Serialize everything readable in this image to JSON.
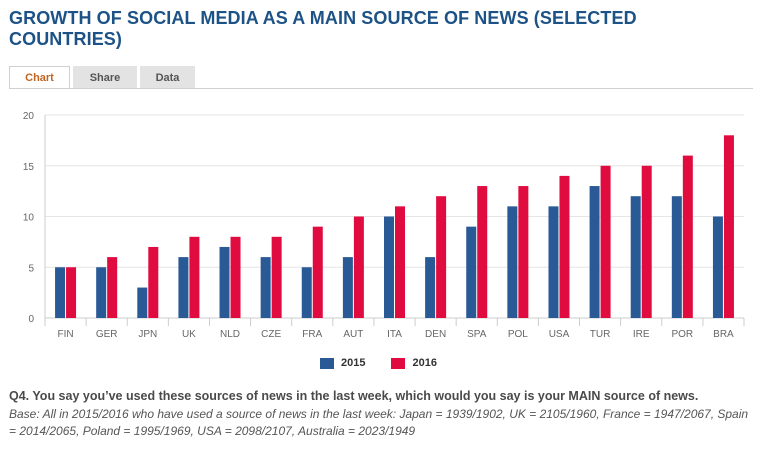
{
  "title": "GROWTH OF SOCIAL MEDIA AS A MAIN SOURCE OF NEWS (SELECTED COUNTRIES)",
  "tabs": {
    "chart": "Chart",
    "share": "Share",
    "data": "Data"
  },
  "colors": {
    "s2015": "#2a5a96",
    "s2016": "#e00b3f",
    "title": "#1c5286"
  },
  "chart_data": {
    "type": "bar",
    "categories": [
      "FIN",
      "GER",
      "JPN",
      "UK",
      "NLD",
      "CZE",
      "FRA",
      "AUT",
      "ITA",
      "DEN",
      "SPA",
      "POL",
      "USA",
      "TUR",
      "IRE",
      "POR",
      "BRA"
    ],
    "series": [
      {
        "name": "2015",
        "values": [
          5,
          5,
          3,
          6,
          7,
          6,
          5,
          6,
          10,
          6,
          9,
          11,
          11,
          13,
          12,
          12,
          10
        ]
      },
      {
        "name": "2016",
        "values": [
          5,
          6,
          7,
          8,
          8,
          8,
          9,
          10,
          11,
          12,
          13,
          13,
          14,
          15,
          15,
          16,
          18
        ]
      }
    ],
    "yticks": [
      "0",
      "5",
      "10",
      "15",
      "20"
    ],
    "ylim": [
      0,
      20
    ],
    "title": "",
    "xlabel": "",
    "ylabel": ""
  },
  "legend": {
    "s2015": "2015",
    "s2016": "2016"
  },
  "question": "Q4. You say you’ve used these sources of news in the last week, which would you say is your MAIN source of news.",
  "base": "Base: All in 2015/2016 who have used a source of news in the last week: Japan = 1939/1902, UK = 2105/1960, France = 1947/2067, Spain = 2014/2065, Poland = 1995/1969, USA = 2098/2107, Australia = 2023/1949"
}
